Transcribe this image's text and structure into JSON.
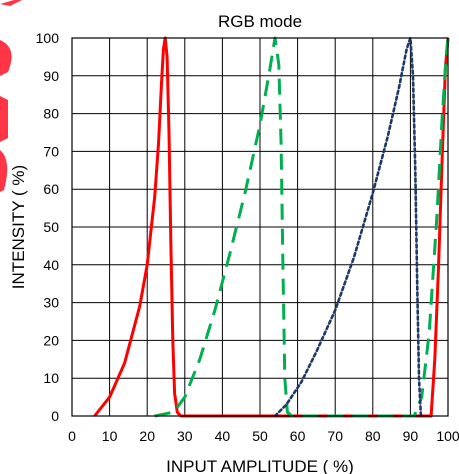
{
  "chart_data": {
    "type": "line",
    "title": "RGB mode",
    "xlabel": "INPUT AMPLITUDE ( %)",
    "ylabel": "INTENSITY ( %)",
    "xlim": [
      0,
      100
    ],
    "ylim": [
      0,
      100
    ],
    "xticks": [
      0,
      10,
      20,
      30,
      40,
      50,
      60,
      70,
      80,
      90,
      100
    ],
    "yticks": [
      0,
      10,
      20,
      30,
      40,
      50,
      60,
      70,
      80,
      90,
      100
    ],
    "grid": true,
    "legend": "none",
    "series": [
      {
        "color": "#ff0000",
        "style": "solid",
        "points": [
          [
            6,
            0
          ],
          [
            10,
            5
          ],
          [
            14,
            14
          ],
          [
            18,
            29
          ],
          [
            20,
            40
          ],
          [
            22,
            58
          ],
          [
            23,
            72
          ],
          [
            23.8,
            88
          ],
          [
            24.3,
            97
          ],
          [
            24.8,
            100
          ],
          [
            25.3,
            95
          ],
          [
            25.8,
            75
          ],
          [
            26.3,
            45
          ],
          [
            26.8,
            20
          ],
          [
            27.3,
            6
          ],
          [
            28,
            1
          ],
          [
            29,
            0
          ],
          [
            95.5,
            0
          ],
          [
            96.5,
            15
          ],
          [
            97.5,
            40
          ],
          [
            98.5,
            70
          ],
          [
            99.3,
            92
          ],
          [
            100,
            100
          ]
        ]
      },
      {
        "color": "#00b050",
        "style": "dashed",
        "points": [
          [
            22,
            0
          ],
          [
            27,
            1
          ],
          [
            30,
            5
          ],
          [
            34,
            15
          ],
          [
            38,
            28
          ],
          [
            42,
            43
          ],
          [
            46,
            59
          ],
          [
            50,
            77
          ],
          [
            52.5,
            91
          ],
          [
            54,
            100
          ],
          [
            55,
            93
          ],
          [
            55.6,
            72
          ],
          [
            56.1,
            40
          ],
          [
            56.6,
            10
          ],
          [
            57.3,
            1
          ],
          [
            58.5,
            0
          ],
          [
            91,
            0
          ],
          [
            93,
            5
          ],
          [
            95,
            22
          ],
          [
            97,
            52
          ],
          [
            98.5,
            80
          ],
          [
            99.5,
            95
          ],
          [
            100,
            100
          ]
        ]
      },
      {
        "color": "#1f3864",
        "style": "dotted",
        "points": [
          [
            54,
            0
          ],
          [
            57,
            3
          ],
          [
            61,
            9
          ],
          [
            65,
            17
          ],
          [
            70,
            28
          ],
          [
            75,
            42
          ],
          [
            80,
            59
          ],
          [
            84,
            74
          ],
          [
            87,
            87
          ],
          [
            89,
            97
          ],
          [
            90,
            100
          ],
          [
            90.7,
            90
          ],
          [
            91.3,
            65
          ],
          [
            91.8,
            35
          ],
          [
            92.3,
            10
          ],
          [
            92.8,
            0
          ]
        ]
      }
    ]
  },
  "watermark": {
    "text": "ROHM",
    "color": "#ff2a3a"
  }
}
